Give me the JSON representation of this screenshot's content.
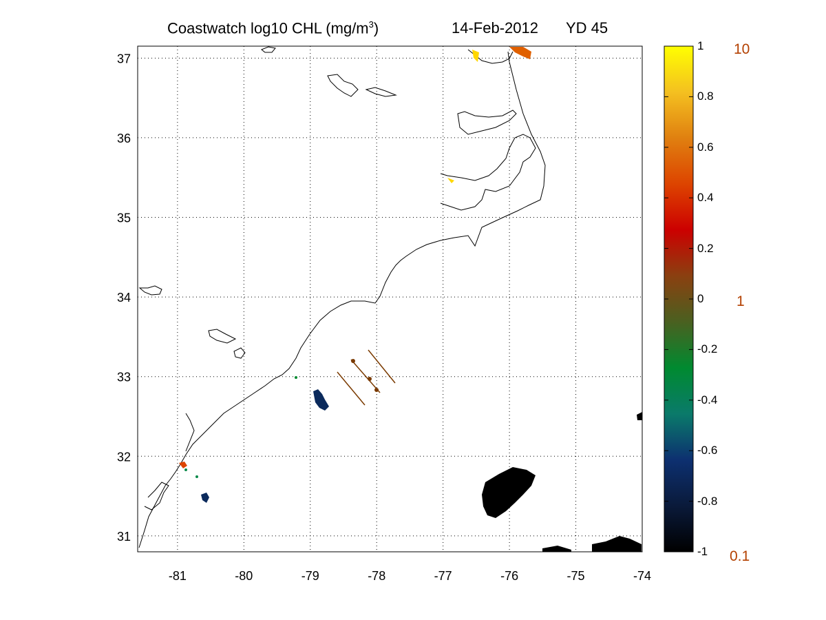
{
  "title": {
    "main": "Coastwatch  log10  CHL (mg/m",
    "superscript": "3",
    "close": ")",
    "date": "14-Feb-2012",
    "yearday": "YD 45"
  },
  "map": {
    "x_ticks": [
      "-81",
      "-80",
      "-79",
      "-78",
      "-77",
      "-76",
      "-75",
      "-74"
    ],
    "y_ticks": [
      "37",
      "36",
      "35",
      "34",
      "33",
      "32",
      "31"
    ],
    "lon_range": [
      -81.6,
      -74.0
    ],
    "lat_range": [
      30.8,
      37.15
    ],
    "grid": "dotted"
  },
  "colorbar": {
    "ticks": [
      "1",
      "0.8",
      "0.6",
      "0.4",
      "0.2",
      "0",
      "-0.2",
      "-0.4",
      "-0.6",
      "-0.8",
      "-1"
    ],
    "range": [
      -1,
      1
    ],
    "colors": [
      "#000000",
      "#0a1a3a",
      "#0d3070",
      "#0a7a6a",
      "#008a30",
      "#4a6020",
      "#8a4010",
      "#cc0000",
      "#dd4400",
      "#e08010",
      "#f4c020",
      "#ffff00"
    ],
    "right_labels": {
      "top": "10",
      "middle": "1",
      "bottom": "0.1"
    }
  },
  "colors": {
    "coast": "#000000",
    "track": "#7a3a00",
    "dark_patch": "#000000",
    "navy_patch": "#0b2a5c",
    "orange_patch": "#e06000",
    "yellow_patch": "#ffd700"
  }
}
